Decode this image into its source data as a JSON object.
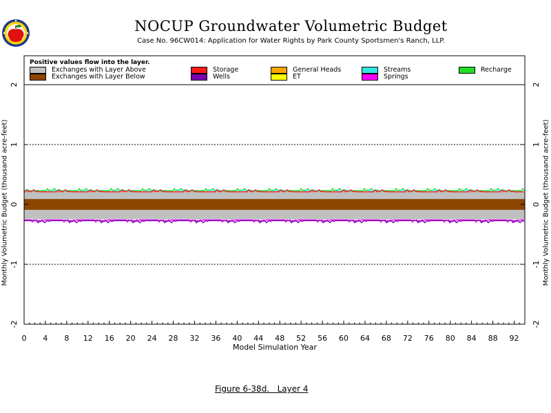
{
  "header": {
    "title": "NOCUP Groundwater Volumetric Budget",
    "subtitle": "Case No. 96CW014: Application for Water Rights by Park County Sportsmen's Ranch, LLP."
  },
  "logo": {
    "icon": "apple-logo-icon",
    "colors": [
      "#1f3b8c",
      "#ffd400",
      "#e01010",
      "#2c8a2c"
    ]
  },
  "caption": "Figure 6-38d.   Layer 4",
  "legend": {
    "note": "Positive values flow into the layer.",
    "items": [
      {
        "label": "Exchanges with Layer Above",
        "color": "#c0c0c0"
      },
      {
        "label": "Exchanges with Layer Below",
        "color": "#8b4500"
      },
      {
        "label": "Storage",
        "color": "#ff1a1a"
      },
      {
        "label": "Wells",
        "color": "#7a00b0"
      },
      {
        "label": "General Heads",
        "color": "#ffa500"
      },
      {
        "label": "ET",
        "color": "#ffff00"
      },
      {
        "label": "Streams",
        "color": "#33e6e6"
      },
      {
        "label": "Springs",
        "color": "#ff00ff"
      },
      {
        "label": "Recharge",
        "color": "#22dd22"
      }
    ]
  },
  "chart_data": {
    "type": "area",
    "title": "NOCUP Groundwater Volumetric Budget",
    "xlabel": "Model Simulation Year",
    "ylabel": "Monthly Volumetric Budget (thousand acre-feet)",
    "xlim": [
      0,
      94
    ],
    "ylim": [
      -2,
      2
    ],
    "x_ticks": [
      0,
      4,
      8,
      12,
      16,
      20,
      24,
      28,
      32,
      36,
      40,
      44,
      48,
      52,
      56,
      60,
      64,
      68,
      72,
      76,
      80,
      84,
      88,
      92
    ],
    "y_ticks": [
      -2,
      -1,
      0,
      1,
      2
    ],
    "dashed_gridlines_at": [
      -1,
      1
    ],
    "series": [
      {
        "name": "Exchanges with Layer Above",
        "color": "#c0c0c0",
        "positive": 0.21,
        "negative": -0.25
      },
      {
        "name": "Exchanges with Layer Below",
        "color": "#8b4500",
        "positive": 0.09,
        "negative": -0.09
      },
      {
        "name": "Storage",
        "color": "#ff1a1a",
        "positive": 0.005,
        "negative": -0.005
      },
      {
        "name": "Wells",
        "color": "#7a00b0",
        "positive": 0.0,
        "negative": -0.02
      },
      {
        "name": "Streams",
        "color": "#33e6e6",
        "positive": 0.005,
        "negative": 0.0
      },
      {
        "name": "Springs",
        "color": "#ff00ff",
        "positive": 0.0,
        "negative": -0.01
      },
      {
        "name": "Recharge",
        "color": "#22dd22",
        "positive": 0.02,
        "negative": 0.0
      }
    ]
  }
}
